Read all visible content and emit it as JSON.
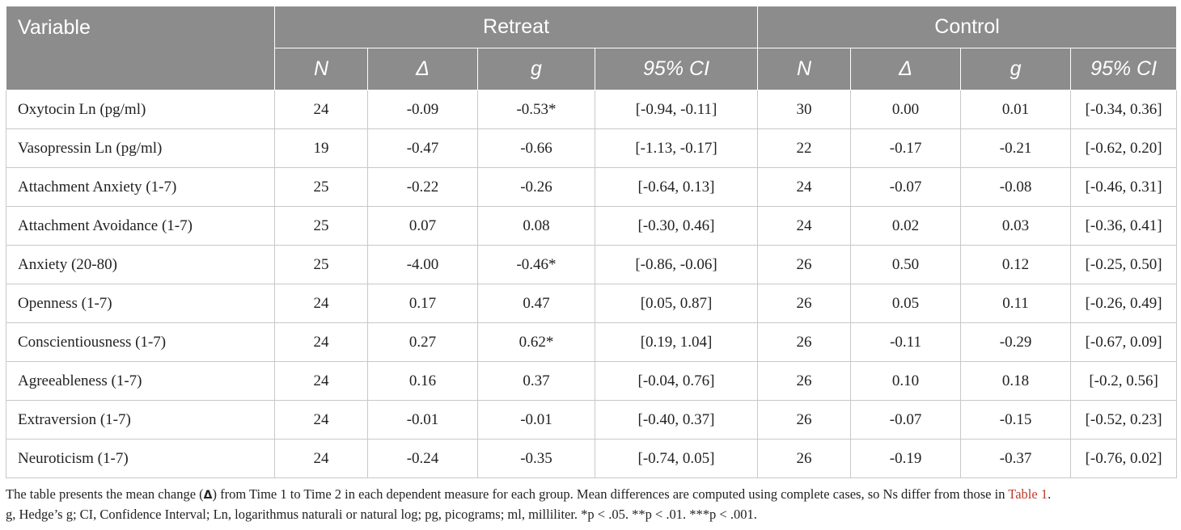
{
  "table": {
    "header": {
      "variable": "Variable",
      "group_retreat": "Retreat",
      "group_control": "Control",
      "sub_columns": [
        "N",
        "Δ",
        "g",
        "95% CI"
      ]
    },
    "rows": [
      {
        "variable": "Oxytocin Ln (pg/ml)",
        "retreat": {
          "n": "24",
          "delta": "-0.09",
          "g": "-0.53*",
          "ci": "[-0.94, -0.11]"
        },
        "control": {
          "n": "30",
          "delta": "0.00",
          "g": "0.01",
          "ci": "[-0.34, 0.36]"
        }
      },
      {
        "variable": "Vasopressin Ln (pg/ml)",
        "retreat": {
          "n": "19",
          "delta": "-0.47",
          "g": "-0.66",
          "ci": "[-1.13, -0.17]"
        },
        "control": {
          "n": "22",
          "delta": "-0.17",
          "g": "-0.21",
          "ci": "[-0.62, 0.20]"
        }
      },
      {
        "variable": "Attachment Anxiety (1-7)",
        "retreat": {
          "n": "25",
          "delta": "-0.22",
          "g": "-0.26",
          "ci": "[-0.64, 0.13]"
        },
        "control": {
          "n": "24",
          "delta": "-0.07",
          "g": "-0.08",
          "ci": "[-0.46, 0.31]"
        }
      },
      {
        "variable": "Attachment Avoidance (1-7)",
        "retreat": {
          "n": "25",
          "delta": "0.07",
          "g": "0.08",
          "ci": "[-0.30, 0.46]"
        },
        "control": {
          "n": "24",
          "delta": "0.02",
          "g": "0.03",
          "ci": "[-0.36, 0.41]"
        }
      },
      {
        "variable": "Anxiety (20-80)",
        "retreat": {
          "n": "25",
          "delta": "-4.00",
          "g": "-0.46*",
          "ci": "[-0.86, -0.06]"
        },
        "control": {
          "n": "26",
          "delta": "0.50",
          "g": "0.12",
          "ci": "[-0.25, 0.50]"
        }
      },
      {
        "variable": "Openness (1-7)",
        "retreat": {
          "n": "24",
          "delta": "0.17",
          "g": "0.47",
          "ci": "[0.05, 0.87]"
        },
        "control": {
          "n": "26",
          "delta": "0.05",
          "g": "0.11",
          "ci": "[-0.26, 0.49]"
        }
      },
      {
        "variable": "Conscientiousness (1-7)",
        "retreat": {
          "n": "24",
          "delta": "0.27",
          "g": "0.62*",
          "ci": "[0.19, 1.04]"
        },
        "control": {
          "n": "26",
          "delta": "-0.11",
          "g": "-0.29",
          "ci": "[-0.67, 0.09]"
        }
      },
      {
        "variable": "Agreeableness (1-7)",
        "retreat": {
          "n": "24",
          "delta": "0.16",
          "g": "0.37",
          "ci": "[-0.04, 0.76]"
        },
        "control": {
          "n": "26",
          "delta": "0.10",
          "g": "0.18",
          "ci": "[-0.2, 0.56]"
        }
      },
      {
        "variable": "Extraversion (1-7)",
        "retreat": {
          "n": "24",
          "delta": "-0.01",
          "g": "-0.01",
          "ci": "[-0.40, 0.37]"
        },
        "control": {
          "n": "26",
          "delta": "-0.07",
          "g": "-0.15",
          "ci": "[-0.52, 0.23]"
        }
      },
      {
        "variable": "Neuroticism (1-7)",
        "retreat": {
          "n": "24",
          "delta": "-0.24",
          "g": "-0.35",
          "ci": "[-0.74, 0.05]"
        },
        "control": {
          "n": "26",
          "delta": "-0.19",
          "g": "-0.37",
          "ci": "[-0.76, 0.02]"
        }
      }
    ]
  },
  "footnote": {
    "line1_pre": "The table presents the mean change (",
    "line1_delta": "Δ",
    "line1_mid": ") from Time 1 to Time 2 in each dependent measure for each group. Mean differences are computed using complete cases, so Ns differ from those in ",
    "line1_link": "Table 1",
    "line1_post": ".",
    "line2": "g, Hedge’s g; CI, Confidence Interval; Ln, logarithmus naturali or natural log; pg, picograms; ml, milliliter. *p < .05. **p < .01. ***p < .001."
  },
  "colors": {
    "header_bg": "#8c8c8c",
    "header_text": "#ffffff",
    "grid": "#c8c8c8",
    "link": "#c0392b"
  }
}
